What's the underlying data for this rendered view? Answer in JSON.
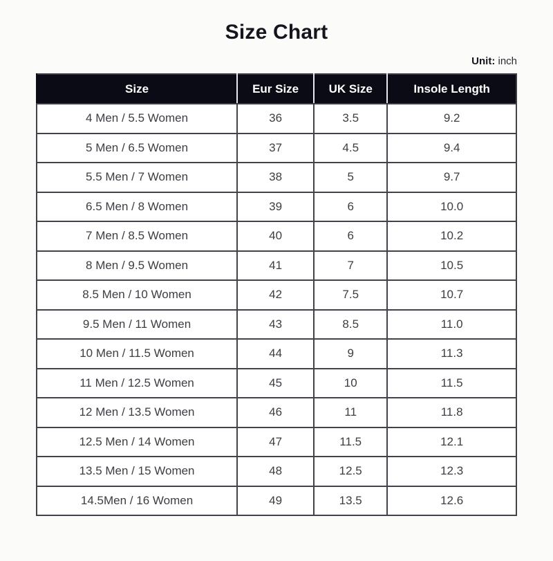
{
  "page": {
    "title": "Size Chart",
    "unit_label": "Unit:",
    "unit_value": " inch"
  },
  "colors": {
    "header_bg": "#0b0b15",
    "header_text": "#ffffff",
    "header_divider": "#e9e9ec",
    "body_border": "#42424b",
    "body_text": "#3d3d43",
    "page_bg": "#fbfbfa"
  },
  "chart_data": {
    "type": "table",
    "title": "Size Chart",
    "unit": "inch",
    "columns": [
      "Size",
      "Eur Size",
      "UK Size",
      "Insole Length"
    ],
    "rows": [
      [
        "4 Men / 5.5 Women",
        "36",
        "3.5",
        "9.2"
      ],
      [
        "5 Men / 6.5 Women",
        "37",
        "4.5",
        "9.4"
      ],
      [
        "5.5 Men / 7 Women",
        "38",
        "5",
        "9.7"
      ],
      [
        "6.5 Men / 8 Women",
        "39",
        "6",
        "10.0"
      ],
      [
        "7 Men / 8.5 Women",
        "40",
        "6",
        "10.2"
      ],
      [
        "8 Men / 9.5 Women",
        "41",
        "7",
        "10.5"
      ],
      [
        "8.5 Men / 10 Women",
        "42",
        "7.5",
        "10.7"
      ],
      [
        "9.5 Men / 11 Women",
        "43",
        "8.5",
        "11.0"
      ],
      [
        "10 Men / 11.5 Women",
        "44",
        "9",
        "11.3"
      ],
      [
        "11 Men / 12.5 Women",
        "45",
        "10",
        "11.5"
      ],
      [
        "12 Men / 13.5 Women",
        "46",
        "11",
        "11.8"
      ],
      [
        "12.5 Men / 14 Women",
        "47",
        "11.5",
        "12.1"
      ],
      [
        "13.5 Men / 15 Women",
        "48",
        "12.5",
        "12.3"
      ],
      [
        "14.5Men / 16 Women",
        "49",
        "13.5",
        "12.6"
      ]
    ]
  }
}
